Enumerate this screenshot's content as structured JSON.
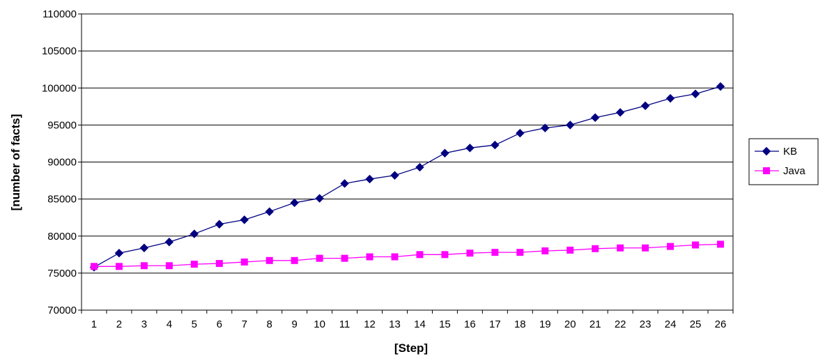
{
  "chart_data": {
    "type": "line",
    "xlabel": "[Step]",
    "ylabel": "[number of facts]",
    "x": [
      1,
      2,
      3,
      4,
      5,
      6,
      7,
      8,
      9,
      10,
      11,
      12,
      13,
      14,
      15,
      16,
      17,
      18,
      19,
      20,
      21,
      22,
      23,
      24,
      25,
      26
    ],
    "ylim": [
      70000,
      110000
    ],
    "yticks": [
      70000,
      75000,
      80000,
      85000,
      90000,
      95000,
      100000,
      105000,
      110000
    ],
    "grid": "horizontal",
    "legend": "right",
    "series": [
      {
        "name": "KB",
        "color": "#000080",
        "marker": "diamond",
        "values": [
          75800,
          77700,
          78400,
          79200,
          80300,
          81600,
          82200,
          83300,
          84500,
          85100,
          87100,
          87700,
          88200,
          89300,
          91200,
          91900,
          92300,
          93900,
          94600,
          95000,
          96000,
          96700,
          97600,
          98600,
          99200,
          100200
        ]
      },
      {
        "name": "Java",
        "color": "#ff00ff",
        "marker": "square",
        "values": [
          75900,
          75900,
          76000,
          76000,
          76200,
          76300,
          76500,
          76700,
          76700,
          77000,
          77000,
          77200,
          77200,
          77500,
          77500,
          77700,
          77800,
          77800,
          78000,
          78100,
          78300,
          78400,
          78400,
          78600,
          78800,
          78900
        ]
      }
    ]
  }
}
